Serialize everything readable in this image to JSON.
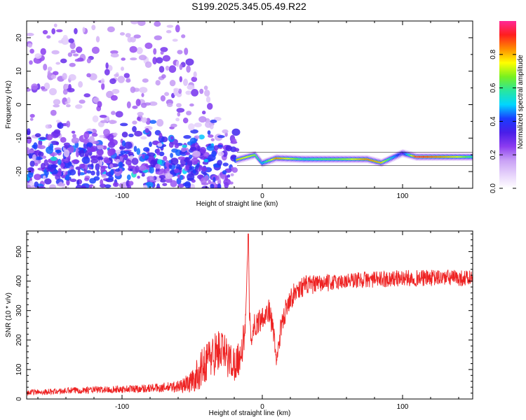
{
  "title": "S199.2025.345.05.49.R22",
  "colors": {
    "snr_line": "#ee2222",
    "colormap": [
      "#ffffff",
      "#e6d2fb",
      "#c8a0f5",
      "#8c3cf0",
      "#4a1ee8",
      "#1a3cff",
      "#00d6ff",
      "#28e6a0",
      "#78f020",
      "#ffff00",
      "#ff8c00",
      "#ff1e1e",
      "#ff2896"
    ]
  },
  "chart_data": [
    {
      "type": "heatmap",
      "xlabel": "Height of straight line (km)",
      "ylabel": "Frequency (Hz)",
      "xlim": [
        -168,
        150
      ],
      "ylim": [
        -25,
        25
      ],
      "xticks": [
        -100,
        0,
        100
      ],
      "yticks": [
        -20,
        -10,
        0,
        10,
        20
      ],
      "colorbar": {
        "label": "Normalized spectral amplitude",
        "range": [
          0,
          1
        ],
        "ticks": [
          "0.0",
          "0.2",
          "0.4",
          "0.6",
          "0.8"
        ]
      },
      "ridge": {
        "x_range": [
          -18,
          150
        ],
        "frequency_hz": -16,
        "description_points": [
          {
            "x": -18,
            "y": -16.5,
            "amp": 0.8
          },
          {
            "x": -5,
            "y": -15,
            "amp": 0.7
          },
          {
            "x": 0,
            "y": -17.5,
            "amp": 0.5
          },
          {
            "x": 10,
            "y": -16,
            "amp": 0.85
          },
          {
            "x": 30,
            "y": -16.3,
            "amp": 0.6
          },
          {
            "x": 60,
            "y": -16.3,
            "amp": 0.7
          },
          {
            "x": 75,
            "y": -16.3,
            "amp": 0.85
          },
          {
            "x": 85,
            "y": -17.4,
            "amp": 0.8
          },
          {
            "x": 100,
            "y": -14.5,
            "amp": 0.3
          },
          {
            "x": 110,
            "y": -15.6,
            "amp": 0.95
          },
          {
            "x": 140,
            "y": -15.6,
            "amp": 0.75
          },
          {
            "x": 150,
            "y": -15.6,
            "amp": 0.6
          }
        ]
      }
    },
    {
      "type": "line",
      "xlabel": "Height of straight line (km)",
      "ylabel": "SNR (10 * v/v)",
      "xlim": [
        -168,
        150
      ],
      "ylim": [
        0,
        570
      ],
      "xticks": [
        -100,
        0,
        100
      ],
      "yticks": [
        0,
        100,
        200,
        300,
        400,
        500
      ],
      "series": [
        {
          "x": [
            -168,
            -150,
            -130,
            -110,
            -90,
            -75,
            -65,
            -57,
            -50,
            -45,
            -40,
            -35,
            -30,
            -25,
            -20,
            -15,
            -12,
            -10,
            -9,
            -8,
            -5,
            0,
            5,
            8,
            10,
            13,
            18,
            25,
            30,
            40,
            50,
            60,
            70,
            80,
            90,
            100,
            110,
            120,
            130,
            140,
            150
          ],
          "y": [
            22,
            25,
            30,
            32,
            35,
            38,
            40,
            45,
            60,
            90,
            130,
            150,
            170,
            140,
            120,
            150,
            250,
            560,
            250,
            220,
            250,
            280,
            300,
            230,
            125,
            230,
            330,
            370,
            385,
            390,
            395,
            400,
            405,
            405,
            408,
            410,
            410,
            410,
            412,
            410,
            410
          ],
          "noise": [
            10,
            10,
            12,
            12,
            14,
            15,
            18,
            25,
            40,
            60,
            70,
            75,
            75,
            70,
            60,
            60,
            50,
            0,
            50,
            50,
            45,
            40,
            40,
            40,
            20,
            40,
            40,
            35,
            35,
            30,
            28,
            28,
            28,
            28,
            28,
            28,
            28,
            28,
            28,
            28,
            28
          ]
        }
      ]
    }
  ]
}
